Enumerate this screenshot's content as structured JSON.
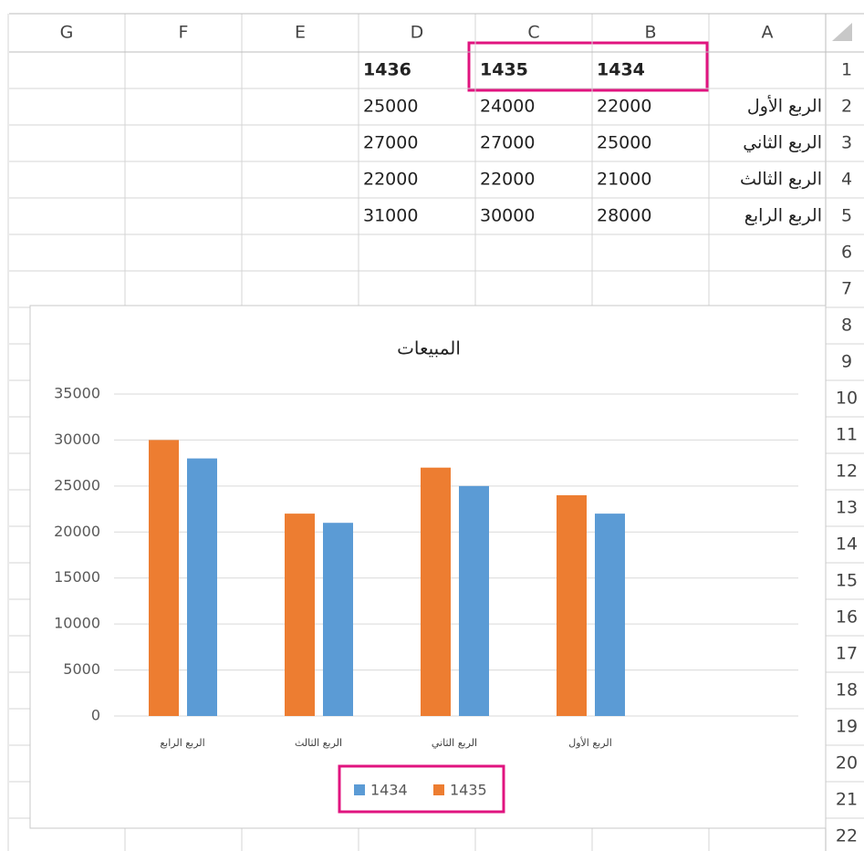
{
  "sheet": {
    "columns": [
      "A",
      "B",
      "C",
      "D",
      "E",
      "F",
      "G"
    ],
    "row_numbers": [
      1,
      2,
      3,
      4,
      5,
      6,
      7,
      8,
      9,
      10,
      11,
      12,
      13,
      14,
      15,
      16,
      17,
      18,
      19,
      20,
      21,
      22
    ],
    "rows": [
      {
        "B": "1434",
        "C": "1435",
        "D": "1436"
      },
      {
        "A": "الربع الأول",
        "B": "22000",
        "C": "24000",
        "D": "25000"
      },
      {
        "A": "الربع الثاني",
        "B": "25000",
        "C": "27000",
        "D": "27000"
      },
      {
        "A": "الربع الثالث",
        "B": "21000",
        "C": "22000",
        "D": "22000"
      },
      {
        "A": "الربع الرابع",
        "B": "28000",
        "C": "30000",
        "D": "31000"
      }
    ]
  },
  "chart_data": {
    "type": "bar",
    "title": "المبيعات",
    "categories": [
      "الربع الرابع",
      "الربع الثالث",
      "الربع الثاني",
      "الربع الأول"
    ],
    "series": [
      {
        "name": "1434",
        "color": "#5b9bd5",
        "values": [
          28000,
          21000,
          25000,
          22000
        ]
      },
      {
        "name": "1435",
        "color": "#ed7d31",
        "values": [
          30000,
          22000,
          27000,
          24000
        ]
      }
    ],
    "ylim": [
      0,
      35000
    ],
    "yticks": [
      0,
      5000,
      10000,
      15000,
      20000,
      25000,
      30000,
      35000
    ],
    "grid": true,
    "legend": "bottom"
  }
}
